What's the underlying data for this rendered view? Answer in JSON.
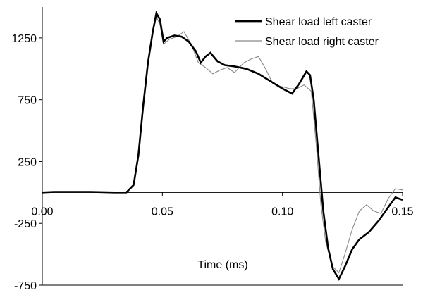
{
  "chart_data": {
    "type": "line",
    "title": "",
    "xlabel": "Time (ms)",
    "ylabel": "",
    "xlim": [
      0,
      0.15
    ],
    "ylim": [
      -750,
      1500
    ],
    "x_ticks": [
      "0.00",
      "0.05",
      "0.10",
      "0.15"
    ],
    "x_tick_values": [
      0,
      0.05,
      0.1,
      0.15
    ],
    "y_ticks": [
      "1250",
      "750",
      "250",
      "-250",
      "-750"
    ],
    "y_tick_values": [
      1250,
      750,
      250,
      -250,
      -750
    ],
    "grid": false,
    "legend": "top-right",
    "series": [
      {
        "name": "Shear load left caster",
        "color": "#000000",
        "style": "thick",
        "points": [
          [
            0.0,
            0
          ],
          [
            0.005,
            5
          ],
          [
            0.02,
            5
          ],
          [
            0.03,
            0
          ],
          [
            0.035,
            0
          ],
          [
            0.038,
            60
          ],
          [
            0.04,
            300
          ],
          [
            0.042,
            700
          ],
          [
            0.044,
            1050
          ],
          [
            0.046,
            1300
          ],
          [
            0.0475,
            1450
          ],
          [
            0.049,
            1400
          ],
          [
            0.0505,
            1220
          ],
          [
            0.052,
            1250
          ],
          [
            0.055,
            1270
          ],
          [
            0.058,
            1260
          ],
          [
            0.061,
            1220
          ],
          [
            0.064,
            1140
          ],
          [
            0.066,
            1050
          ],
          [
            0.068,
            1100
          ],
          [
            0.07,
            1130
          ],
          [
            0.073,
            1060
          ],
          [
            0.076,
            1030
          ],
          [
            0.08,
            1020
          ],
          [
            0.085,
            1000
          ],
          [
            0.09,
            960
          ],
          [
            0.095,
            900
          ],
          [
            0.1,
            840
          ],
          [
            0.104,
            800
          ],
          [
            0.107,
            880
          ],
          [
            0.11,
            980
          ],
          [
            0.1115,
            950
          ],
          [
            0.113,
            750
          ],
          [
            0.115,
            300
          ],
          [
            0.117,
            -150
          ],
          [
            0.119,
            -450
          ],
          [
            0.121,
            -620
          ],
          [
            0.1235,
            -700
          ],
          [
            0.126,
            -600
          ],
          [
            0.129,
            -460
          ],
          [
            0.132,
            -380
          ],
          [
            0.136,
            -320
          ],
          [
            0.14,
            -230
          ],
          [
            0.144,
            -120
          ],
          [
            0.147,
            -40
          ],
          [
            0.15,
            -60
          ]
        ]
      },
      {
        "name": "Shear load right caster",
        "color": "#888888",
        "style": "thin",
        "points": [
          [
            0.0,
            0
          ],
          [
            0.005,
            5
          ],
          [
            0.02,
            5
          ],
          [
            0.03,
            0
          ],
          [
            0.035,
            0
          ],
          [
            0.038,
            60
          ],
          [
            0.04,
            290
          ],
          [
            0.042,
            680
          ],
          [
            0.044,
            1030
          ],
          [
            0.046,
            1290
          ],
          [
            0.0475,
            1420
          ],
          [
            0.049,
            1360
          ],
          [
            0.0505,
            1200
          ],
          [
            0.053,
            1240
          ],
          [
            0.056,
            1260
          ],
          [
            0.059,
            1300
          ],
          [
            0.062,
            1200
          ],
          [
            0.065,
            1050
          ],
          [
            0.068,
            1010
          ],
          [
            0.071,
            960
          ],
          [
            0.074,
            990
          ],
          [
            0.077,
            1010
          ],
          [
            0.08,
            970
          ],
          [
            0.084,
            1050
          ],
          [
            0.087,
            1080
          ],
          [
            0.09,
            1100
          ],
          [
            0.093,
            1000
          ],
          [
            0.096,
            880
          ],
          [
            0.099,
            860
          ],
          [
            0.103,
            840
          ],
          [
            0.106,
            840
          ],
          [
            0.109,
            870
          ],
          [
            0.112,
            820
          ],
          [
            0.114,
            400
          ],
          [
            0.116,
            -100
          ],
          [
            0.118,
            -400
          ],
          [
            0.121,
            -600
          ],
          [
            0.1235,
            -650
          ],
          [
            0.126,
            -500
          ],
          [
            0.129,
            -300
          ],
          [
            0.132,
            -150
          ],
          [
            0.135,
            -100
          ],
          [
            0.138,
            -150
          ],
          [
            0.141,
            -170
          ],
          [
            0.144,
            -50
          ],
          [
            0.147,
            30
          ],
          [
            0.15,
            20
          ]
        ]
      }
    ]
  }
}
